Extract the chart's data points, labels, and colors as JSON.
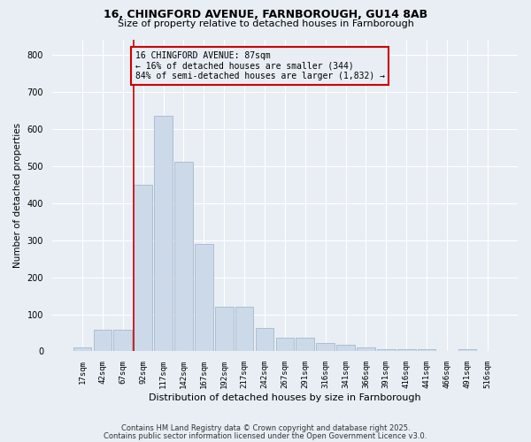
{
  "title1": "16, CHINGFORD AVENUE, FARNBOROUGH, GU14 8AB",
  "title2": "Size of property relative to detached houses in Farnborough",
  "xlabel": "Distribution of detached houses by size in Farnborough",
  "ylabel": "Number of detached properties",
  "footnote1": "Contains HM Land Registry data © Crown copyright and database right 2025.",
  "footnote2": "Contains public sector information licensed under the Open Government Licence v3.0.",
  "bar_labels": [
    "17sqm",
    "42sqm",
    "67sqm",
    "92sqm",
    "117sqm",
    "142sqm",
    "167sqm",
    "192sqm",
    "217sqm",
    "242sqm",
    "267sqm",
    "291sqm",
    "316sqm",
    "341sqm",
    "366sqm",
    "391sqm",
    "416sqm",
    "441sqm",
    "466sqm",
    "491sqm",
    "516sqm"
  ],
  "bar_values": [
    10,
    58,
    58,
    450,
    635,
    510,
    290,
    120,
    120,
    63,
    38,
    38,
    22,
    18,
    10,
    7,
    7,
    5,
    0,
    5,
    0
  ],
  "bar_color": "#ccd9e8",
  "bar_edge_color": "#9ab0c8",
  "subject_line_color": "#cc0000",
  "subject_line_index": 3,
  "annotation_text": "16 CHINGFORD AVENUE: 87sqm\n← 16% of detached houses are smaller (344)\n84% of semi-detached houses are larger (1,832) →",
  "annotation_box_color": "#cc0000",
  "background_color": "#e8eef4",
  "grid_color": "#ffffff",
  "ylim": [
    0,
    840
  ],
  "yticks": [
    0,
    100,
    200,
    300,
    400,
    500,
    600,
    700,
    800
  ]
}
